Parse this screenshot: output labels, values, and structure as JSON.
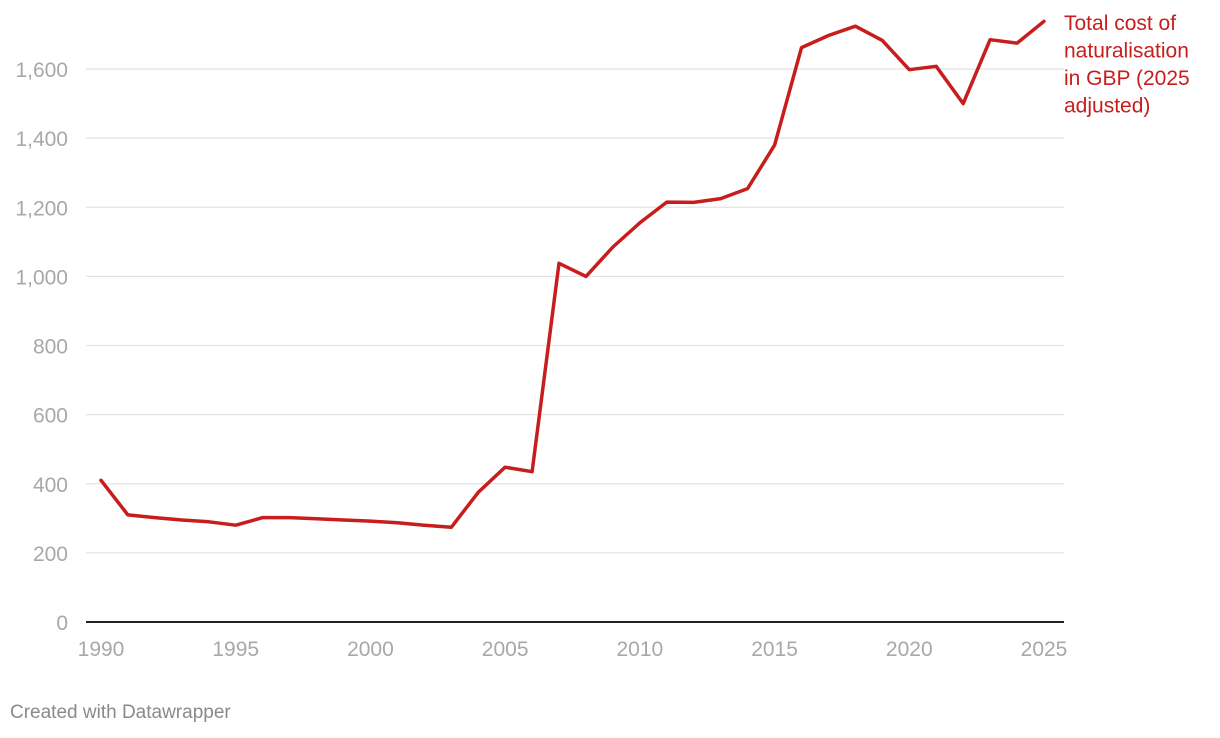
{
  "chart_data": {
    "type": "line",
    "title": "",
    "xlabel": "",
    "ylabel": "",
    "xlim": [
      1990,
      2025
    ],
    "ylim": [
      0,
      1750
    ],
    "x_ticks": [
      "1990",
      "1995",
      "2000",
      "2005",
      "2010",
      "2015",
      "2020",
      "2025"
    ],
    "y_ticks": [
      "0",
      "200",
      "400",
      "600",
      "800",
      "1,000",
      "1,200",
      "1,400",
      "1,600"
    ],
    "grid": "horizontal",
    "series": [
      {
        "name": "Total cost of naturalisation in GBP (2025 adjusted)",
        "label_lines": [
          "Total cost of",
          "naturalisation",
          "in GBP (2025",
          "adjusted)"
        ],
        "color": "#c71e1d",
        "x": [
          1990,
          1991,
          1992,
          1993,
          1994,
          1995,
          1996,
          1997,
          1998,
          1999,
          2000,
          2001,
          2002,
          2003,
          2004,
          2005,
          2006,
          2007,
          2008,
          2009,
          2010,
          2011,
          2012,
          2013,
          2014,
          2015,
          2016,
          2017,
          2018,
          2019,
          2020,
          2021,
          2022,
          2023,
          2024,
          2025
        ],
        "values": [
          410,
          310,
          302,
          295,
          290,
          280,
          302,
          302,
          299,
          295,
          292,
          287,
          280,
          274,
          375,
          448,
          435,
          1038,
          1000,
          1085,
          1155,
          1215,
          1214,
          1225,
          1254,
          1380,
          1662,
          1697,
          1724,
          1683,
          1598,
          1608,
          1500,
          1685,
          1675,
          1738
        ]
      }
    ]
  },
  "footer": {
    "credit": "Created with Datawrapper"
  }
}
